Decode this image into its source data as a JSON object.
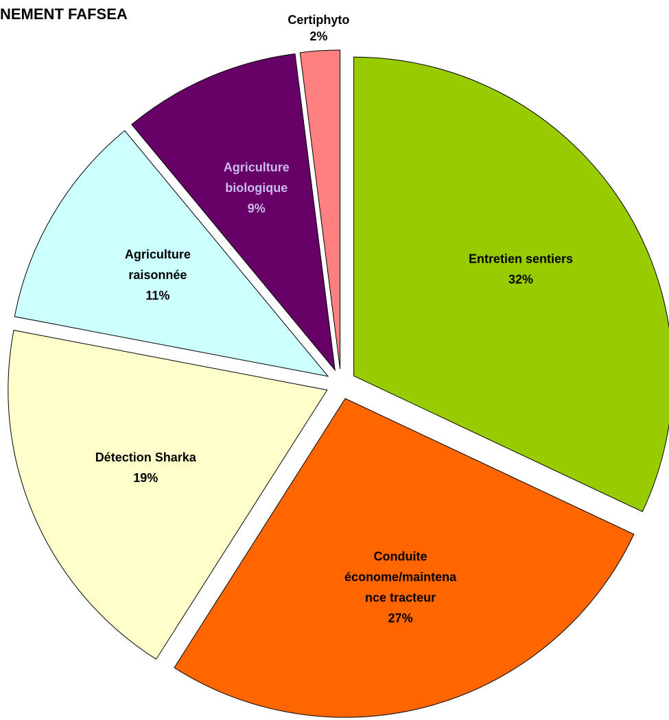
{
  "chart_data": {
    "type": "pie",
    "title": "NEMENT  FAFSEA",
    "categories": [
      [
        "Entretien sentiers"
      ],
      [
        "Conduite",
        "économe/maintena",
        "nce tracteur"
      ],
      [
        "Détection Sharka"
      ],
      [
        "Agriculture",
        "raisonnée"
      ],
      [
        "Agriculture",
        "biologique"
      ],
      [
        "Certiphyto"
      ]
    ],
    "values": [
      32,
      27,
      19,
      11,
      9,
      2
    ],
    "value_labels": [
      "32%",
      "27%",
      "19%",
      "11%",
      "9%",
      "2%"
    ],
    "colors": [
      "#99cc00",
      "#ff6600",
      "#ffffcc",
      "#ccffff",
      "#660066",
      "#ff8080"
    ]
  }
}
